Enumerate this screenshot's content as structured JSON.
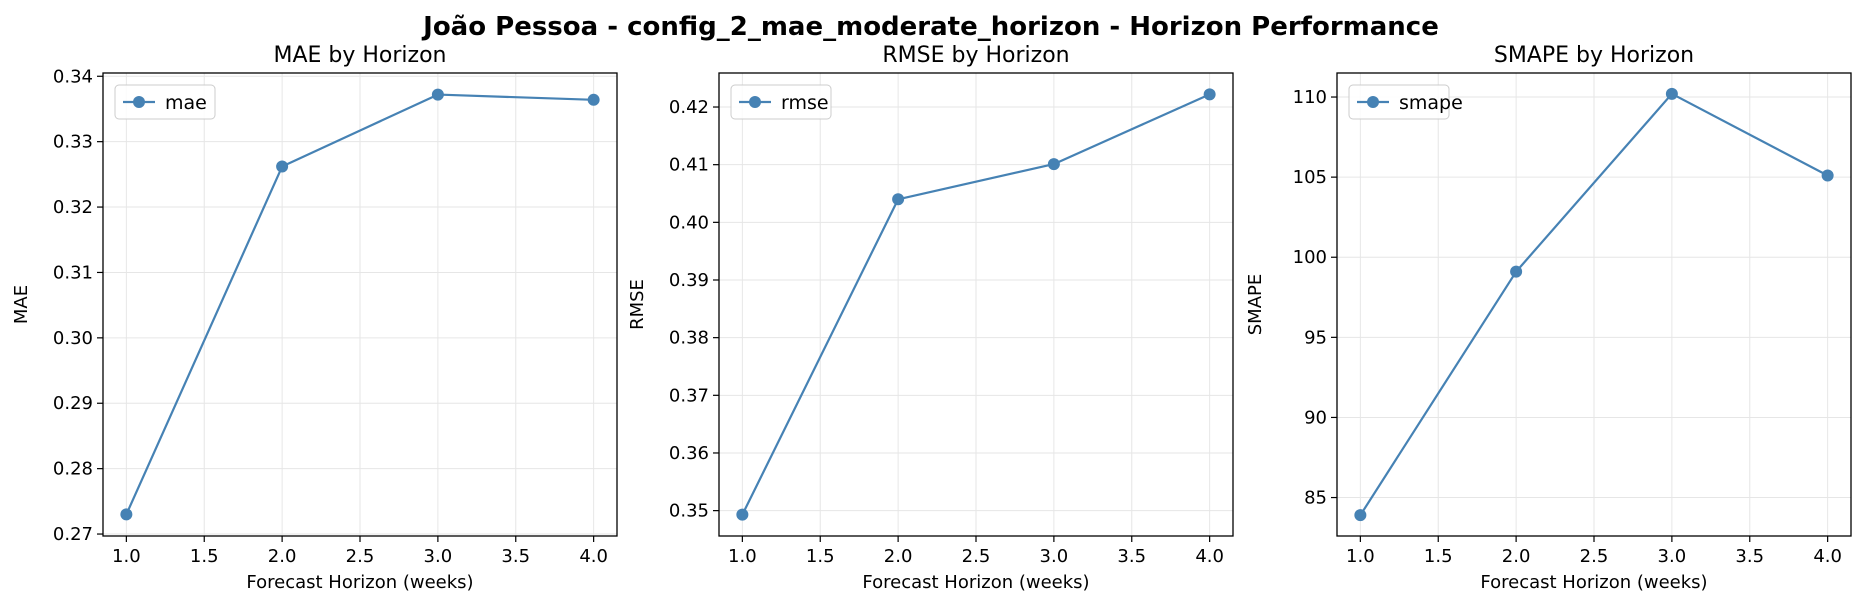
{
  "figure": {
    "title": "João Pessoa - config_2_mae_moderate_horizon - Horizon Performance"
  },
  "colors": {
    "line": "#4682b4",
    "grid": "#e6e6e6",
    "axes": "#000000"
  },
  "chart_data": [
    {
      "type": "line",
      "title": "MAE by Horizon",
      "xlabel": "Forecast Horizon (weeks)",
      "ylabel": "MAE",
      "x": [
        1.0,
        2.0,
        3.0,
        4.0
      ],
      "series": [
        {
          "name": "mae",
          "values": [
            0.273,
            0.3262,
            0.3372,
            0.3364
          ]
        }
      ],
      "xlim": [
        0.85,
        4.15
      ],
      "ylim": [
        0.2697,
        0.3405
      ],
      "xticks": [
        1.0,
        1.5,
        2.0,
        2.5,
        3.0,
        3.5,
        4.0
      ],
      "xtick_labels": [
        "1.0",
        "1.5",
        "2.0",
        "2.5",
        "3.0",
        "3.5",
        "4.0"
      ],
      "yticks": [
        0.27,
        0.28,
        0.29,
        0.3,
        0.31,
        0.32,
        0.33,
        0.34
      ],
      "ytick_labels": [
        "0.27",
        "0.28",
        "0.29",
        "0.30",
        "0.31",
        "0.32",
        "0.33",
        "0.34"
      ],
      "grid": true,
      "legend": "upper-left"
    },
    {
      "type": "line",
      "title": "RMSE by Horizon",
      "xlabel": "Forecast Horizon (weeks)",
      "ylabel": "RMSE",
      "x": [
        1.0,
        2.0,
        3.0,
        4.0
      ],
      "series": [
        {
          "name": "rmse",
          "values": [
            0.3493,
            0.404,
            0.4101,
            0.4222
          ]
        }
      ],
      "xlim": [
        0.85,
        4.15
      ],
      "ylim": [
        0.3456,
        0.4259
      ],
      "xticks": [
        1.0,
        1.5,
        2.0,
        2.5,
        3.0,
        3.5,
        4.0
      ],
      "xtick_labels": [
        "1.0",
        "1.5",
        "2.0",
        "2.5",
        "3.0",
        "3.5",
        "4.0"
      ],
      "yticks": [
        0.35,
        0.36,
        0.37,
        0.38,
        0.39,
        0.4,
        0.41,
        0.42
      ],
      "ytick_labels": [
        "0.35",
        "0.36",
        "0.37",
        "0.38",
        "0.39",
        "0.40",
        "0.41",
        "0.42"
      ],
      "grid": true,
      "legend": "upper-left"
    },
    {
      "type": "line",
      "title": "SMAPE by Horizon",
      "xlabel": "Forecast Horizon (weeks)",
      "ylabel": "SMAPE",
      "x": [
        1.0,
        2.0,
        3.0,
        4.0
      ],
      "series": [
        {
          "name": "smape",
          "values": [
            83.9,
            99.1,
            110.2,
            105.1
          ]
        }
      ],
      "xlim": [
        0.85,
        4.15
      ],
      "ylim": [
        82.6,
        111.5
      ],
      "xticks": [
        1.0,
        1.5,
        2.0,
        2.5,
        3.0,
        3.5,
        4.0
      ],
      "xtick_labels": [
        "1.0",
        "1.5",
        "2.0",
        "2.5",
        "3.0",
        "3.5",
        "4.0"
      ],
      "yticks": [
        85,
        90,
        95,
        100,
        105,
        110
      ],
      "ytick_labels": [
        "85",
        "90",
        "95",
        "100",
        "105",
        "110"
      ],
      "grid": true,
      "legend": "upper-left"
    }
  ]
}
